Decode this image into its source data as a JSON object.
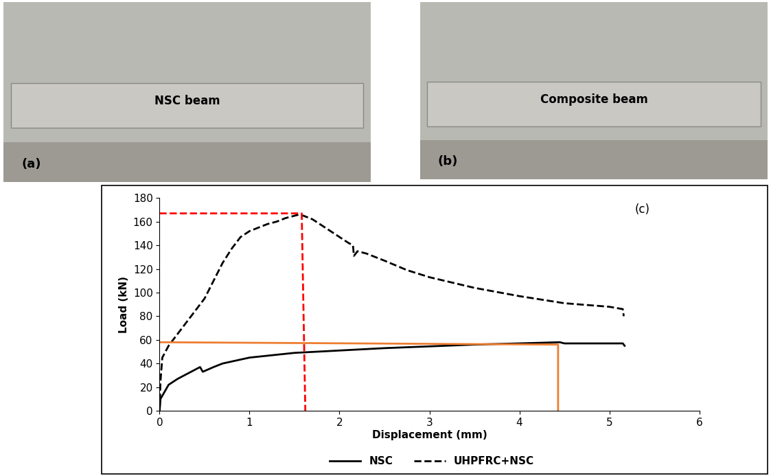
{
  "photos": [
    {
      "label": "(a)",
      "caption": "NSC beam"
    },
    {
      "label": "(b)",
      "caption": "Composite beam"
    }
  ],
  "chart_data": {
    "type": "line",
    "panel_label": "(c)",
    "x_label": "Displacement (mm)",
    "y_label": "Load (kN)",
    "xlim": [
      0,
      6
    ],
    "ylim": [
      0,
      180
    ],
    "xticks": [
      0,
      1,
      2,
      3,
      4,
      5,
      6
    ],
    "yticks": [
      0,
      20,
      40,
      60,
      80,
      100,
      120,
      140,
      160,
      180
    ],
    "grid": false,
    "legend": "lower center",
    "series": [
      {
        "name": "NSC",
        "color": "#000000",
        "line_style": "solid",
        "x": [
          0,
          0.01,
          0.1,
          0.2,
          0.3,
          0.4,
          0.45,
          0.48,
          0.6,
          0.7,
          1.0,
          1.5,
          2.0,
          2.5,
          3.0,
          3.5,
          4.0,
          4.45,
          4.5,
          5.0,
          5.15,
          5.17
        ],
        "values": [
          0,
          10,
          22,
          27,
          31,
          35,
          37,
          33,
          37,
          40,
          45,
          49,
          51,
          53,
          54.5,
          56,
          57,
          58,
          57,
          57,
          57,
          55
        ]
      },
      {
        "name": "UHPFRC+NSC",
        "color": "#000000",
        "line_style": "dashed",
        "x": [
          0,
          0.01,
          0.03,
          0.1,
          0.2,
          0.3,
          0.4,
          0.5,
          0.6,
          0.7,
          0.8,
          0.9,
          1.0,
          1.1,
          1.2,
          1.3,
          1.4,
          1.5,
          1.55,
          1.6,
          1.7,
          1.8,
          1.9,
          2.0,
          2.1,
          2.15,
          2.16,
          2.2,
          2.3,
          2.5,
          2.75,
          3.0,
          3.5,
          4.0,
          4.5,
          5.0,
          5.15,
          5.16
        ],
        "values": [
          0,
          25,
          45,
          55,
          65,
          75,
          85,
          95,
          110,
          125,
          137,
          147,
          152,
          155,
          158,
          160,
          163,
          165,
          166,
          165,
          162,
          157,
          152,
          147,
          142,
          140,
          131,
          135,
          133,
          127,
          119,
          113,
          104,
          97,
          91,
          88,
          86,
          80
        ]
      }
    ],
    "reference_lines": [
      {
        "color": "#ff0000",
        "line_style": "dashed",
        "x": [
          0,
          1.58,
          1.62
        ],
        "values": [
          167,
          167,
          0
        ]
      },
      {
        "color": "#ed7d31",
        "line_style": "solid",
        "x": [
          0,
          4.43,
          4.43
        ],
        "values": [
          58,
          56,
          0
        ]
      }
    ]
  }
}
